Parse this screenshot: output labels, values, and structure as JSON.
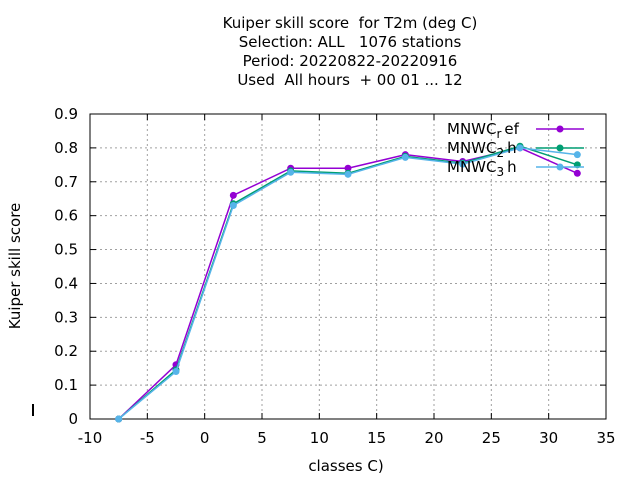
{
  "title_lines": [
    "Kuiper skill score  for T2m (deg C)",
    "Selection: ALL   1076 stations",
    "Period: 20220822-20220916",
    "Used  All hours  + 00 01 ... 12"
  ],
  "chart_data": {
    "type": "line",
    "xlabel": "classes C)",
    "ylabel": "Kuiper skill score",
    "xlim": [
      -10,
      35
    ],
    "ylim": [
      0,
      0.9
    ],
    "xticks": [
      -10,
      -5,
      0,
      5,
      10,
      15,
      20,
      25,
      30,
      35
    ],
    "yticks": [
      0,
      0.1,
      0.2,
      0.3,
      0.4,
      0.5,
      0.6,
      0.7,
      0.8,
      0.9
    ],
    "grid": true,
    "legend_position": "top-right",
    "x": [
      -7.5,
      -2.5,
      2.5,
      7.5,
      12.5,
      17.5,
      22.5,
      27.5,
      32.5
    ],
    "series": [
      {
        "legend_main": "MNWC",
        "legend_sub": "r",
        "legend_tail": "ef",
        "color": "#9400d3",
        "marker": "filled-circle",
        "values": [
          0.0,
          0.16,
          0.66,
          0.74,
          0.74,
          0.78,
          0.76,
          0.8,
          0.725
        ]
      },
      {
        "legend_main": "MNWC",
        "legend_sub": "2",
        "legend_tail": "h",
        "color": "#009e73",
        "marker": "filled-circle",
        "values": [
          0.0,
          0.145,
          0.635,
          0.732,
          0.725,
          0.775,
          0.755,
          0.805,
          0.75
        ]
      },
      {
        "legend_main": "MNWC",
        "legend_sub": "3",
        "legend_tail": "h",
        "color": "#56b4e9",
        "marker": "filled-circle",
        "values": [
          0.0,
          0.14,
          0.63,
          0.728,
          0.722,
          0.772,
          0.752,
          0.8,
          0.78
        ]
      }
    ]
  }
}
